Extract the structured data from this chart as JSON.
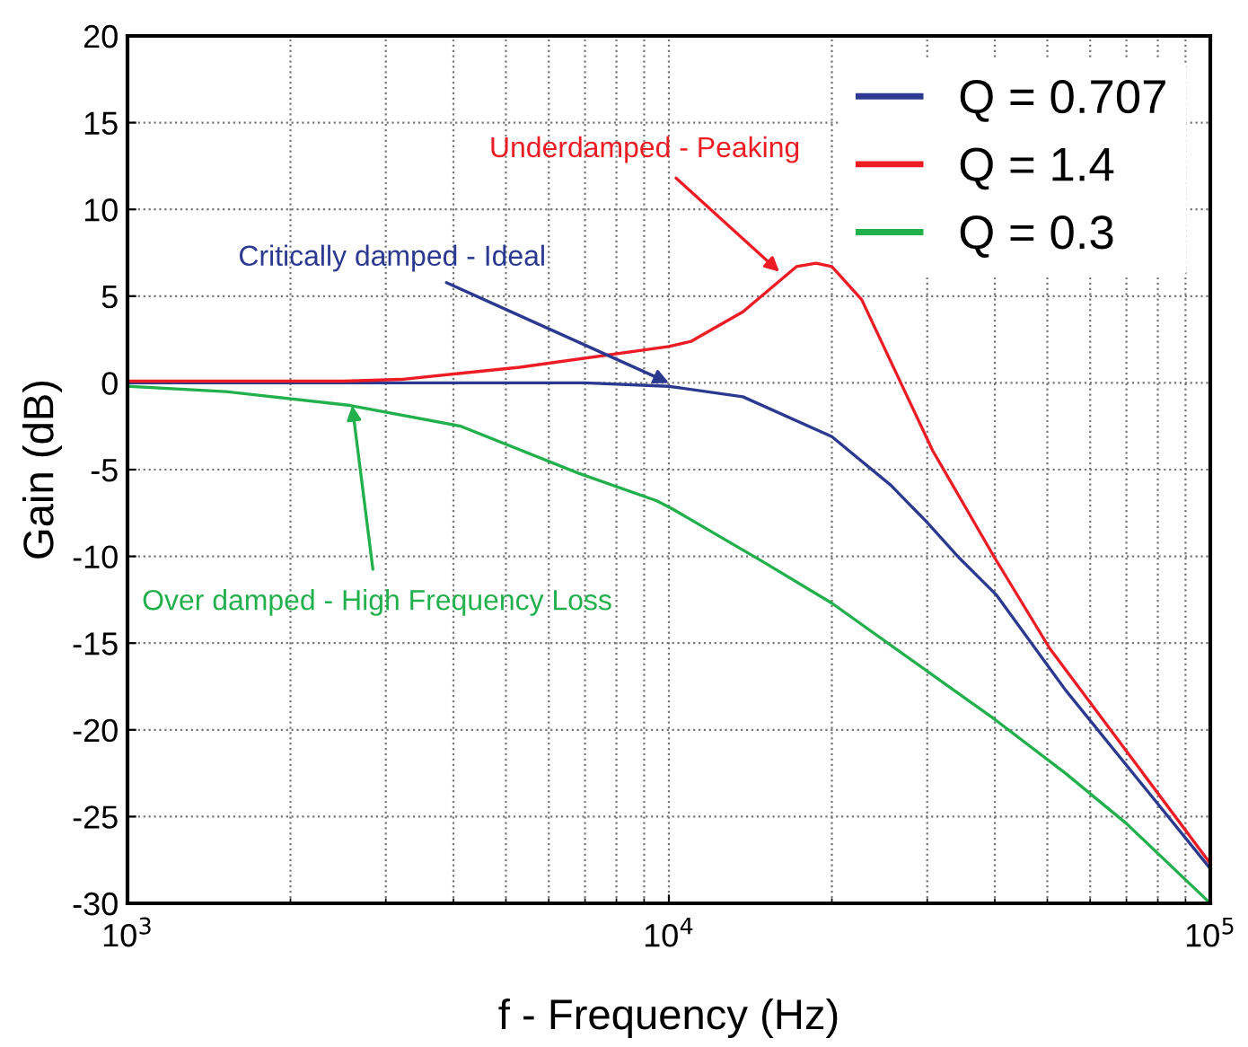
{
  "chart_data": {
    "type": "line",
    "xlabel": "f - Frequency (Hz)",
    "ylabel": "Gain (dB)",
    "log": "x",
    "grid": true,
    "legend": "top right",
    "line_style": "solid",
    "marker": "none",
    "xlim": [
      1000,
      100000
    ],
    "ylim": [
      -30,
      20
    ],
    "xticks": [
      {
        "value": 1000,
        "label": "10$^{3}$"
      },
      {
        "value": 10000,
        "label": "10$^{4}$"
      },
      {
        "value": 100000,
        "label": "10$^{5}$"
      }
    ],
    "yticks": [
      -30,
      -25,
      -20,
      -15,
      -10,
      -5,
      0,
      5,
      10,
      15,
      20
    ],
    "series": [
      {
        "name": "Q = 0.707",
        "color": "#2b3990",
        "x": [
          1000,
          3000,
          7000,
          10000,
          13700,
          20000,
          25700,
          29900,
          34400,
          40200,
          54000,
          75500,
          100000
        ],
        "values": [
          0,
          0,
          0,
          -0.2,
          -0.8,
          -3.1,
          -5.9,
          -8.0,
          -10.1,
          -12.2,
          -17.7,
          -23.3,
          -28.0
        ]
      },
      {
        "name": "Q = 1.4",
        "color": "#ed1c24",
        "x": [
          1000,
          2500,
          3200,
          5300,
          10000,
          11000,
          13700,
          17200,
          18700,
          20000,
          22700,
          30700,
          40000,
          50500,
          100000
        ],
        "values": [
          0.1,
          0.1,
          0.2,
          0.9,
          2.1,
          2.4,
          4.1,
          6.7,
          6.9,
          6.7,
          4.8,
          -3.9,
          -10.1,
          -15.3,
          -27.7
        ]
      },
      {
        "name": "Q = 0.3",
        "color": "#22b04c",
        "x": [
          1000,
          1520,
          2580,
          4130,
          6800,
          9500,
          10200,
          14900,
          20000,
          40000,
          54000,
          70000,
          100000
        ],
        "values": [
          -0.2,
          -0.5,
          -1.3,
          -2.5,
          -5.2,
          -6.8,
          -7.3,
          -10.3,
          -12.7,
          -19.4,
          -22.5,
          -25.4,
          -30
        ]
      }
    ],
    "annotations": [
      {
        "text": "Critically damped - Ideal",
        "x": 10000,
        "y": 0
      },
      {
        "text": "Underdamped - Peaking",
        "x": 16000,
        "y": 6.4
      },
      {
        "text": "Over damped - High Frequency Loss",
        "x": 2600,
        "y": -1.3
      }
    ]
  }
}
